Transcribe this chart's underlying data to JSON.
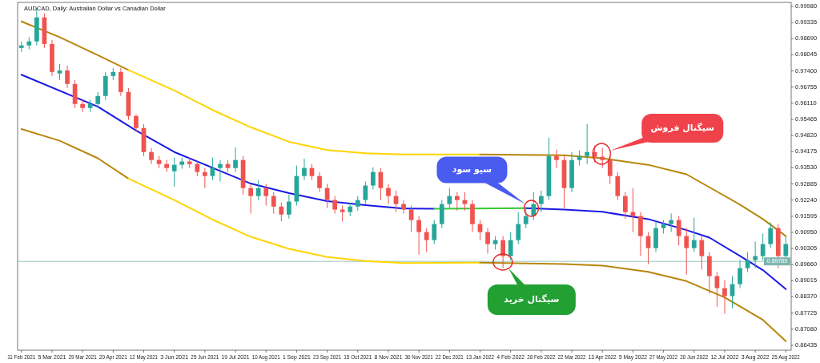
{
  "chart_data": {
    "type": "candlestick",
    "title": "AUDCAD, Daily: Australian Dollar vs Canadian Dollar",
    "categories": [
      "11 Feb 2021",
      null,
      null,
      null,
      "5 Mar 2021",
      null,
      null,
      null,
      "29 Mar 2021",
      null,
      null,
      null,
      "20 Apr 2021",
      null,
      null,
      null,
      "12 May 2021",
      null,
      null,
      null,
      "3 Jun 2021",
      null,
      null,
      null,
      "25 Jun 2021",
      null,
      null,
      null,
      "19 Jul 2021",
      null,
      null,
      null,
      "10 Aug 2021",
      null,
      null,
      null,
      "1 Sep 2021",
      null,
      null,
      null,
      "23 Sep 2021",
      null,
      null,
      null,
      "15 Oct 2021",
      null,
      null,
      null,
      "8 Nov 2021",
      null,
      null,
      null,
      "30 Nov 2021",
      null,
      null,
      null,
      "22 Dec 2021",
      null,
      null,
      null,
      "13 Jan 2022",
      null,
      null,
      null,
      "4 Feb 2022",
      null,
      null,
      null,
      "28 Feb 2022",
      null,
      null,
      null,
      "22 Mar 2022",
      null,
      null,
      null,
      "13 Apr 2022",
      null,
      null,
      null,
      "5 May 2022",
      null,
      null,
      null,
      "27 May 2022",
      null,
      null,
      null,
      "20 Jun 2022",
      null,
      null,
      null,
      "12 Jul 2022",
      null,
      null,
      null,
      "3 Aug 2022",
      null,
      null,
      null,
      "25 Aug 2022"
    ],
    "ohlc": [
      [
        0.9832,
        0.9858,
        0.9816,
        0.9842
      ],
      [
        0.9842,
        0.9874,
        0.9826,
        0.9858
      ],
      [
        0.9858,
        0.9992,
        0.9842,
        0.9954
      ],
      [
        0.9954,
        0.997,
        0.9832,
        0.9848
      ],
      [
        0.9848,
        0.9864,
        0.972,
        0.9736
      ],
      [
        0.973,
        0.9768,
        0.9704,
        0.9742
      ],
      [
        0.9742,
        0.9762,
        0.9672,
        0.9688
      ],
      [
        0.9688,
        0.9704,
        0.9592,
        0.9608
      ],
      [
        0.9608,
        0.9624,
        0.9576,
        0.9592
      ],
      [
        0.9592,
        0.9624,
        0.9576,
        0.9608
      ],
      [
        0.9608,
        0.9656,
        0.9592,
        0.964
      ],
      [
        0.964,
        0.9736,
        0.9624,
        0.972
      ],
      [
        0.972,
        0.9752,
        0.9704,
        0.9736
      ],
      [
        0.9736,
        0.9752,
        0.964,
        0.9656
      ],
      [
        0.9656,
        0.9672,
        0.9544,
        0.956
      ],
      [
        0.956,
        0.9566,
        0.9496,
        0.9512
      ],
      [
        0.9512,
        0.9528,
        0.94,
        0.9416
      ],
      [
        0.9416,
        0.9432,
        0.9368,
        0.9384
      ],
      [
        0.9384,
        0.94,
        0.9352,
        0.9368
      ],
      [
        0.9368,
        0.9384,
        0.9336,
        0.9352
      ],
      [
        0.9339,
        0.9394,
        0.9278,
        0.9365
      ],
      [
        0.9365,
        0.9394,
        0.9349,
        0.9378
      ],
      [
        0.9378,
        0.9394,
        0.9352,
        0.9368
      ],
      [
        0.9368,
        0.9384,
        0.932,
        0.9336
      ],
      [
        0.9336,
        0.9352,
        0.9272,
        0.932
      ],
      [
        0.932,
        0.9394,
        0.9304,
        0.9352
      ],
      [
        0.9352,
        0.9384,
        0.9298,
        0.9368
      ],
      [
        0.9368,
        0.9384,
        0.9336,
        0.9352
      ],
      [
        0.9352,
        0.9435,
        0.9336,
        0.9384
      ],
      [
        0.9384,
        0.94,
        0.9246,
        0.9272
      ],
      [
        0.9272,
        0.9288,
        0.917,
        0.924
      ],
      [
        0.924,
        0.9304,
        0.9224,
        0.9272
      ],
      [
        0.9272,
        0.9288,
        0.9202,
        0.924
      ],
      [
        0.924,
        0.9256,
        0.917,
        0.9198
      ],
      [
        0.9198,
        0.9214,
        0.9138,
        0.9166
      ],
      [
        0.9166,
        0.9246,
        0.915,
        0.9218
      ],
      [
        0.9218,
        0.9362,
        0.9202,
        0.932
      ],
      [
        0.932,
        0.939,
        0.9304,
        0.9352
      ],
      [
        0.9352,
        0.9368,
        0.9304,
        0.932
      ],
      [
        0.932,
        0.9336,
        0.9256,
        0.9272
      ],
      [
        0.9272,
        0.9288,
        0.9192,
        0.9224
      ],
      [
        0.9224,
        0.924,
        0.917,
        0.9186
      ],
      [
        0.9186,
        0.9202,
        0.9138,
        0.9176
      ],
      [
        0.9176,
        0.9214,
        0.916,
        0.9198
      ],
      [
        0.9198,
        0.924,
        0.9182,
        0.9224
      ],
      [
        0.9224,
        0.9298,
        0.9208,
        0.9282
      ],
      [
        0.9282,
        0.9355,
        0.9266,
        0.9336
      ],
      [
        0.9336,
        0.9352,
        0.9224,
        0.9272
      ],
      [
        0.9272,
        0.9288,
        0.9208,
        0.924
      ],
      [
        0.924,
        0.9262,
        0.9176,
        0.9208
      ],
      [
        0.9208,
        0.9224,
        0.917,
        0.9186
      ],
      [
        0.9186,
        0.9202,
        0.9096,
        0.9144
      ],
      [
        0.9144,
        0.916,
        0.9006,
        0.9096
      ],
      [
        0.9096,
        0.9112,
        0.9016,
        0.9064
      ],
      [
        0.9064,
        0.9144,
        0.9048,
        0.9128
      ],
      [
        0.9128,
        0.9224,
        0.9112,
        0.9208
      ],
      [
        0.9208,
        0.9272,
        0.9192,
        0.924
      ],
      [
        0.924,
        0.9256,
        0.9182,
        0.9224
      ],
      [
        0.9224,
        0.9256,
        0.9182,
        0.9208
      ],
      [
        0.9208,
        0.9224,
        0.9096,
        0.9128
      ],
      [
        0.9128,
        0.9144,
        0.9064,
        0.9096
      ],
      [
        0.9096,
        0.9112,
        0.901,
        0.9048
      ],
      [
        0.9048,
        0.908,
        0.9026,
        0.9064
      ],
      [
        0.9064,
        0.908,
        0.8952,
        0.9
      ],
      [
        0.9,
        0.9096,
        0.8984,
        0.9064
      ],
      [
        0.9064,
        0.9176,
        0.9048,
        0.9128
      ],
      [
        0.9128,
        0.9192,
        0.9112,
        0.916
      ],
      [
        0.916,
        0.9256,
        0.9144,
        0.9208
      ],
      [
        0.9208,
        0.9262,
        0.9176,
        0.924
      ],
      [
        0.924,
        0.9474,
        0.9224,
        0.94
      ],
      [
        0.94,
        0.9426,
        0.9352,
        0.9384
      ],
      [
        0.9384,
        0.94,
        0.9192,
        0.9272
      ],
      [
        0.9272,
        0.9416,
        0.9256,
        0.9384
      ],
      [
        0.9384,
        0.9422,
        0.9362,
        0.94
      ],
      [
        0.94,
        0.9528,
        0.9368,
        0.9416
      ],
      [
        0.9416,
        0.9442,
        0.9374,
        0.9397
      ],
      [
        0.9397,
        0.9432,
        0.9352,
        0.9384
      ],
      [
        0.9384,
        0.94,
        0.9288,
        0.932
      ],
      [
        0.932,
        0.9336,
        0.9224,
        0.924
      ],
      [
        0.924,
        0.9256,
        0.915,
        0.9176
      ],
      [
        0.9176,
        0.9272,
        0.9096,
        0.916
      ],
      [
        0.916,
        0.9176,
        0.9,
        0.908
      ],
      [
        0.908,
        0.9096,
        0.8968,
        0.9032
      ],
      [
        0.9032,
        0.9138,
        0.9016,
        0.9112
      ],
      [
        0.9112,
        0.9144,
        0.909,
        0.9128
      ],
      [
        0.9128,
        0.917,
        0.9096,
        0.9144
      ],
      [
        0.9144,
        0.916,
        0.9042,
        0.908
      ],
      [
        0.908,
        0.9112,
        0.8926,
        0.9032
      ],
      [
        0.9032,
        0.9154,
        0.9016,
        0.9064
      ],
      [
        0.9064,
        0.908,
        0.8946,
        0.9
      ],
      [
        0.9,
        0.9016,
        0.885,
        0.892
      ],
      [
        0.892,
        0.8936,
        0.8798,
        0.8872
      ],
      [
        0.8872,
        0.8904,
        0.877,
        0.884
      ],
      [
        0.884,
        0.892,
        0.8792,
        0.8888
      ],
      [
        0.8888,
        0.8984,
        0.8872,
        0.8952
      ],
      [
        0.8952,
        0.9016,
        0.8936,
        0.8984
      ],
      [
        0.8984,
        0.9058,
        0.8952,
        0.9
      ],
      [
        0.9,
        0.909,
        0.8984,
        0.9048
      ],
      [
        0.9048,
        0.9134,
        0.9032,
        0.9112
      ],
      [
        0.9112,
        0.9128,
        0.8952,
        0.9
      ],
      [
        0.9,
        0.908,
        0.8974,
        0.9048
      ]
    ],
    "colors": [
      "#26a69a",
      "#26a69a",
      "#26a69a",
      "#ef5350",
      "#ef5350",
      "#26a69a",
      "#ef5350",
      "#ef5350",
      "#ef5350",
      "#26a69a",
      "#26a69a",
      "#26a69a",
      "#26a69a",
      "#ef5350",
      "#ef5350",
      "#ef5350",
      "#ef5350",
      "#ef5350",
      "#ef5350",
      "#ef5350",
      "#26a69a",
      "#26a69a",
      "#ef5350",
      "#ef5350",
      "#ef5350",
      "#26a69a",
      "#26a69a",
      "#ef5350",
      "#26a69a",
      "#ef5350",
      "#ef5350",
      "#26a69a",
      "#ef5350",
      "#ef5350",
      "#ef5350",
      "#26a69a",
      "#26a69a",
      "#26a69a",
      "#ef5350",
      "#ef5350",
      "#ef5350",
      "#ef5350",
      "#ef5350",
      "#26a69a",
      "#26a69a",
      "#26a69a",
      "#26a69a",
      "#ef5350",
      "#ef5350",
      "#ef5350",
      "#ef5350",
      "#ef5350",
      "#ef5350",
      "#ef5350",
      "#26a69a",
      "#26a69a",
      "#26a69a",
      "#ef5350",
      "#ef5350",
      "#ef5350",
      "#ef5350",
      "#ef5350",
      "#26a69a",
      "#ef5350",
      "#26a69a",
      "#26a69a",
      "#26a69a",
      "#26a69a",
      "#26a69a",
      "#26a69a",
      "#ef5350",
      "#ef5350",
      "#26a69a",
      "#26a69a",
      "#26a69a",
      "#ef5350",
      "#ef5350",
      "#ef5350",
      "#ef5350",
      "#ef5350",
      "#ef5350",
      "#ef5350",
      "#ef5350",
      "#26a69a",
      "#26a69a",
      "#26a69a",
      "#ef5350",
      "#ef5350",
      "#26a69a",
      "#ef5350",
      "#ef5350",
      "#ef5350",
      "#ef5350",
      "#26a69a",
      "#26a69a",
      "#26a69a",
      "#26a69a",
      "#26a69a",
      "#26a69a",
      "#ef5350",
      "#26a69a"
    ],
    "series": [
      {
        "type": "line",
        "color": "#1a1ae6",
        "values": [
          0.9725,
          null,
          null,
          null,
          null,
          null,
          null,
          null,
          null,
          null,
          0.9597,
          null,
          null,
          null,
          null,
          0.9502,
          null,
          null,
          null,
          null,
          0.9416,
          null,
          null,
          null,
          null,
          0.9353,
          null,
          null,
          null,
          null,
          0.929,
          null,
          null,
          null,
          null,
          0.9252,
          null,
          null,
          null,
          null,
          0.922,
          null,
          null,
          null,
          null,
          0.9204,
          null,
          null,
          null,
          null,
          0.919,
          null,
          null,
          null,
          0.9189,
          null,
          null,
          null,
          null,
          null,
          null,
          null,
          null,
          null,
          null,
          null,
          null,
          null,
          null,
          null,
          null,
          null,
          null,
          null,
          null,
          null,
          null,
          null,
          null,
          null,
          null,
          null,
          null,
          null,
          null,
          null,
          null,
          null,
          null,
          null,
          null,
          null,
          null,
          null,
          null,
          null,
          null,
          null,
          null,
          null,
          null
        ]
      },
      {
        "type": "line",
        "color": "#33cc33",
        "values": [
          null,
          null,
          null,
          null,
          null,
          null,
          null,
          null,
          null,
          null,
          null,
          null,
          null,
          null,
          null,
          null,
          null,
          null,
          null,
          null,
          null,
          null,
          null,
          null,
          null,
          null,
          null,
          null,
          null,
          null,
          null,
          null,
          null,
          null,
          null,
          null,
          null,
          null,
          null,
          null,
          null,
          null,
          null,
          null,
          null,
          null,
          null,
          null,
          null,
          null,
          null,
          null,
          null,
          null,
          0.9189,
          null,
          null,
          null,
          null,
          null,
          null,
          null,
          null,
          null,
          null,
          null,
          0.9192,
          null,
          null,
          null,
          null,
          null,
          null,
          null,
          null,
          null,
          null,
          null,
          null,
          null,
          null,
          null,
          null,
          null,
          null,
          null,
          null,
          null,
          null,
          null,
          null,
          null,
          null,
          null,
          null,
          null,
          null,
          null,
          null,
          null,
          null
        ]
      },
      {
        "type": "line",
        "color": "#1a1ae6",
        "values": [
          null,
          null,
          null,
          null,
          null,
          null,
          null,
          null,
          null,
          null,
          null,
          null,
          null,
          null,
          null,
          null,
          null,
          null,
          null,
          null,
          null,
          null,
          null,
          null,
          null,
          null,
          null,
          null,
          null,
          null,
          null,
          null,
          null,
          null,
          null,
          null,
          null,
          null,
          null,
          null,
          null,
          null,
          null,
          null,
          null,
          null,
          null,
          null,
          null,
          null,
          null,
          null,
          null,
          null,
          null,
          null,
          null,
          null,
          null,
          null,
          null,
          null,
          null,
          null,
          null,
          null,
          0.9192,
          null,
          null,
          null,
          null,
          0.9186,
          null,
          null,
          null,
          null,
          0.9177,
          null,
          null,
          null,
          null,
          null,
          0.9148,
          null,
          null,
          null,
          null,
          0.9104,
          null,
          null,
          0.9074,
          null,
          null,
          null,
          0.9001,
          null,
          null,
          0.8944,
          null,
          null,
          0.8868
        ]
      },
      {
        "type": "line",
        "color": "#b8860b",
        "values": [
          0.9938,
          null,
          null,
          null,
          null,
          0.9875,
          null,
          null,
          null,
          null,
          0.9803,
          null,
          null,
          null,
          0.9744,
          null,
          null,
          null,
          null,
          null,
          null,
          null,
          null,
          null,
          null,
          null,
          null,
          null,
          null,
          null,
          null,
          null,
          null,
          null,
          null,
          null,
          null,
          null,
          null,
          null,
          null,
          null,
          null,
          null,
          null,
          null,
          null,
          null,
          null,
          null,
          null,
          null,
          null,
          null,
          null,
          null,
          null,
          null,
          null,
          null,
          null,
          null,
          null,
          null,
          null,
          null,
          null,
          null,
          null,
          null,
          null,
          null,
          null,
          null,
          null,
          null,
          null,
          null,
          null,
          null,
          null,
          null,
          null,
          null,
          null,
          null,
          null,
          null,
          null,
          null,
          null,
          null,
          null,
          null,
          null,
          null,
          null,
          null,
          null,
          null,
          null
        ]
      },
      {
        "type": "line",
        "color": "#ffd400",
        "values": [
          null,
          null,
          null,
          null,
          null,
          null,
          null,
          null,
          null,
          null,
          null,
          null,
          null,
          null,
          0.9744,
          null,
          null,
          null,
          null,
          null,
          0.9662,
          null,
          null,
          null,
          null,
          0.9584,
          null,
          null,
          null,
          null,
          0.9515,
          null,
          null,
          null,
          null,
          0.9457,
          null,
          null,
          null,
          null,
          0.9424,
          null,
          null,
          null,
          null,
          0.9411,
          null,
          null,
          null,
          null,
          0.9406,
          null,
          null,
          null,
          null,
          null,
          null,
          null,
          null,
          null,
          0.9406,
          null,
          null,
          null,
          null,
          null,
          null,
          null,
          null,
          null,
          null,
          null,
          null,
          null,
          null,
          null,
          null,
          null,
          null,
          null,
          null,
          null,
          null,
          null,
          null,
          null,
          null,
          null,
          null,
          null,
          null,
          null,
          null,
          null,
          null,
          null,
          null,
          null,
          null,
          null,
          null
        ]
      },
      {
        "type": "line",
        "color": "#b8860b",
        "values": [
          null,
          null,
          null,
          null,
          null,
          null,
          null,
          null,
          null,
          null,
          null,
          null,
          null,
          null,
          null,
          null,
          null,
          null,
          null,
          null,
          null,
          null,
          null,
          null,
          null,
          null,
          null,
          null,
          null,
          null,
          null,
          null,
          null,
          null,
          null,
          null,
          null,
          null,
          null,
          null,
          null,
          null,
          null,
          null,
          null,
          null,
          null,
          null,
          null,
          null,
          null,
          null,
          null,
          null,
          null,
          null,
          null,
          null,
          null,
          null,
          0.9406,
          null,
          null,
          null,
          null,
          null,
          null,
          null,
          null,
          null,
          null,
          0.9403,
          null,
          null,
          null,
          null,
          0.9391,
          null,
          null,
          null,
          null,
          null,
          0.9365,
          null,
          null,
          null,
          null,
          0.9327,
          null,
          null,
          null,
          null,
          null,
          null,
          0.9206,
          null,
          null,
          0.9148,
          null,
          null,
          0.908
        ]
      },
      {
        "type": "line",
        "color": "#b8860b",
        "values": [
          0.9508,
          null,
          null,
          null,
          null,
          0.9461,
          null,
          null,
          null,
          null,
          0.9391,
          null,
          null,
          null,
          0.931,
          null,
          null,
          null,
          null,
          null,
          null,
          null,
          null,
          null,
          null,
          null,
          null,
          null,
          null,
          null,
          null,
          null,
          null,
          null,
          null,
          null,
          null,
          null,
          null,
          null,
          null,
          null,
          null,
          null,
          null,
          null,
          null,
          null,
          null,
          null,
          null,
          null,
          null,
          null,
          null,
          null,
          null,
          null,
          null,
          null,
          null,
          null,
          null,
          null,
          null,
          null,
          null,
          null,
          null,
          null,
          null,
          null,
          null,
          null,
          null,
          null,
          null,
          null,
          null,
          null,
          null,
          null,
          null,
          null,
          null,
          null,
          null,
          null,
          null,
          null,
          null,
          null,
          null,
          null,
          null,
          null,
          null,
          null,
          null,
          null,
          null
        ]
      },
      {
        "type": "line",
        "color": "#ffd400",
        "values": [
          null,
          null,
          null,
          null,
          null,
          null,
          null,
          null,
          null,
          null,
          null,
          null,
          null,
          null,
          0.931,
          null,
          null,
          null,
          null,
          null,
          0.9224,
          null,
          null,
          null,
          null,
          0.9146,
          null,
          null,
          null,
          null,
          0.9077,
          null,
          null,
          null,
          null,
          0.9029,
          null,
          null,
          null,
          null,
          0.8996,
          null,
          null,
          null,
          null,
          0.898,
          null,
          null,
          null,
          null,
          0.8972,
          null,
          null,
          null,
          null,
          null,
          null,
          null,
          null,
          null,
          0.8974,
          null,
          null,
          null,
          null,
          null,
          null,
          null,
          null,
          null,
          null,
          null,
          null,
          null,
          null,
          null,
          null,
          null,
          null,
          null,
          null,
          null,
          null,
          null,
          null,
          null,
          null,
          null,
          null,
          null,
          null,
          null,
          null,
          null,
          null,
          null,
          null,
          null,
          null,
          null,
          null
        ]
      },
      {
        "type": "line",
        "color": "#b8860b",
        "values": [
          null,
          null,
          null,
          null,
          null,
          null,
          null,
          null,
          null,
          null,
          null,
          null,
          null,
          null,
          null,
          null,
          null,
          null,
          null,
          null,
          null,
          null,
          null,
          null,
          null,
          null,
          null,
          null,
          null,
          null,
          null,
          null,
          null,
          null,
          null,
          null,
          null,
          null,
          null,
          null,
          null,
          null,
          null,
          null,
          null,
          null,
          null,
          null,
          null,
          null,
          null,
          null,
          null,
          null,
          null,
          null,
          null,
          null,
          null,
          null,
          0.8974,
          null,
          null,
          null,
          null,
          null,
          null,
          null,
          null,
          null,
          null,
          0.8968,
          null,
          null,
          null,
          null,
          0.8962,
          null,
          null,
          null,
          null,
          null,
          0.8937,
          null,
          null,
          null,
          null,
          0.89,
          null,
          null,
          null,
          null,
          0.8835,
          null,
          null,
          null,
          null,
          0.8745,
          null,
          null,
          0.866
        ]
      }
    ],
    "ref_lines": [
      {
        "axis": "y",
        "value": 0.89789,
        "label": "0.89789",
        "color": "#7fb5b1"
      }
    ],
    "annotations": [
      "سیگنال فروش",
      "سیو سود",
      "سیگنال خرید"
    ],
    "ylim": [
      0.8624,
      1.0014
    ],
    "yticks": [
      {
        "value": 0.9998,
        "label": "0.99980"
      },
      {
        "value": 0.99335,
        "label": "0.99335"
      },
      {
        "value": 0.9869,
        "label": "0.98690"
      },
      {
        "value": 0.98045,
        "label": "0.98045"
      },
      {
        "value": 0.974,
        "label": "0.97400"
      },
      {
        "value": 0.96755,
        "label": "0.96755"
      },
      {
        "value": 0.9611,
        "label": "0.96110"
      },
      {
        "value": 0.95465,
        "label": "0.95465"
      },
      {
        "value": 0.9482,
        "label": "0.94820"
      },
      {
        "value": 0.94175,
        "label": "0.94175"
      },
      {
        "value": 0.9353,
        "label": "0.93530"
      },
      {
        "value": 0.92885,
        "label": "0.92885"
      },
      {
        "value": 0.9224,
        "label": "0.92240"
      },
      {
        "value": 0.91595,
        "label": "0.91595"
      },
      {
        "value": 0.9095,
        "label": "0.90950"
      },
      {
        "value": 0.90305,
        "label": "0.90305"
      },
      {
        "value": 0.8966,
        "label": "0.89660"
      },
      {
        "value": 0.89015,
        "label": "0.89015"
      },
      {
        "value": 0.8837,
        "label": "0.88370"
      },
      {
        "value": 0.87725,
        "label": "0.87725"
      },
      {
        "value": 0.8708,
        "label": "0.87080"
      },
      {
        "value": 0.86435,
        "label": "0.86435"
      }
    ]
  }
}
